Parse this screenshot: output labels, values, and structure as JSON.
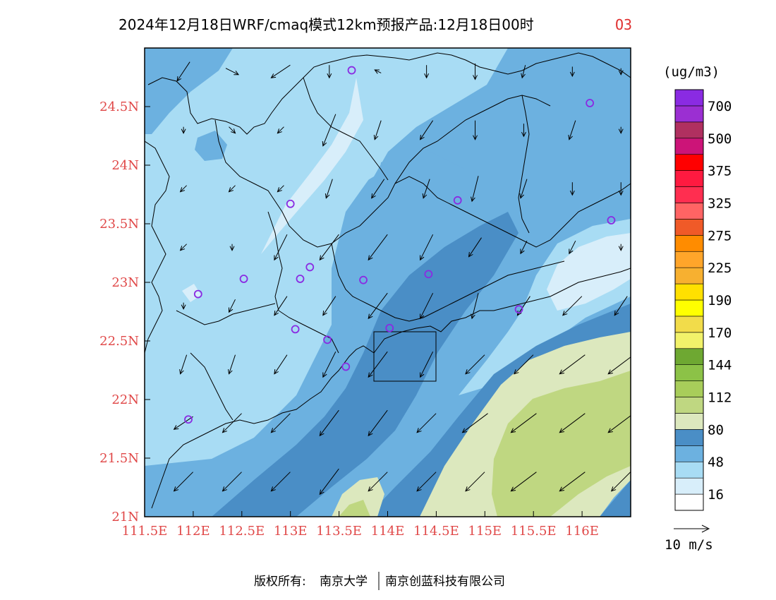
{
  "title": {
    "main": "2024年12月18日WRF/cmaq模式12km预报产品:12月18日00时",
    "species": "O3"
  },
  "map": {
    "lon_range": [
      111.5,
      116.5
    ],
    "lat_range": [
      21.0,
      25.0
    ],
    "x_ticks": [
      {
        "value": 111.5,
        "label": "111.5E"
      },
      {
        "value": 112.0,
        "label": "112E"
      },
      {
        "value": 112.5,
        "label": "112.5E"
      },
      {
        "value": 113.0,
        "label": "113E"
      },
      {
        "value": 113.5,
        "label": "113.5E"
      },
      {
        "value": 114.0,
        "label": "114E"
      },
      {
        "value": 114.5,
        "label": "114.5E"
      },
      {
        "value": 115.0,
        "label": "115E"
      },
      {
        "value": 115.5,
        "label": "115.5E"
      },
      {
        "value": 116.0,
        "label": "116E"
      }
    ],
    "y_ticks": [
      {
        "value": 21.0,
        "label": "21N"
      },
      {
        "value": 21.5,
        "label": "21.5N"
      },
      {
        "value": 22.0,
        "label": "22N"
      },
      {
        "value": 22.5,
        "label": "22.5N"
      },
      {
        "value": 23.0,
        "label": "23N"
      },
      {
        "value": 23.5,
        "label": "23.5N"
      },
      {
        "value": 24.0,
        "label": "24N"
      },
      {
        "value": 24.5,
        "label": "24.5N"
      }
    ],
    "colors": {
      "lev16": "#d8eefa",
      "lev48": "#a8dcf4",
      "lev64": "#6cb1e0",
      "lev80": "#4a8ec6",
      "lev96": "#dce8be",
      "lev112": "#bfd781",
      "border": "#000000",
      "station": "#8a2be2"
    },
    "stations": [
      {
        "lon": 113.63,
        "lat": 24.81
      },
      {
        "lon": 116.08,
        "lat": 24.53
      },
      {
        "lon": 113.0,
        "lat": 23.67
      },
      {
        "lon": 114.72,
        "lat": 23.7
      },
      {
        "lon": 116.3,
        "lat": 23.53
      },
      {
        "lon": 112.52,
        "lat": 23.03
      },
      {
        "lon": 113.2,
        "lat": 23.13
      },
      {
        "lon": 113.1,
        "lat": 23.03
      },
      {
        "lon": 113.75,
        "lat": 23.02
      },
      {
        "lon": 114.42,
        "lat": 23.07
      },
      {
        "lon": 112.05,
        "lat": 22.9
      },
      {
        "lon": 115.35,
        "lat": 22.77
      },
      {
        "lon": 113.05,
        "lat": 22.6
      },
      {
        "lon": 113.38,
        "lat": 22.51
      },
      {
        "lon": 114.02,
        "lat": 22.61
      },
      {
        "lon": 113.57,
        "lat": 22.28
      },
      {
        "lon": 111.95,
        "lat": 21.83
      }
    ],
    "wind": [
      {
        "lon": 111.9,
        "lat": 24.8,
        "u": -2,
        "v": -3
      },
      {
        "lon": 112.4,
        "lat": 24.8,
        "u": 2,
        "v": -1
      },
      {
        "lon": 112.9,
        "lat": 24.8,
        "u": -3,
        "v": -2
      },
      {
        "lon": 113.4,
        "lat": 24.8,
        "u": 0,
        "v": -2
      },
      {
        "lon": 113.9,
        "lat": 24.8,
        "u": -1,
        "v": 0.5
      },
      {
        "lon": 114.4,
        "lat": 24.8,
        "u": 0,
        "v": -2
      },
      {
        "lon": 114.9,
        "lat": 24.8,
        "u": 0,
        "v": -2.5
      },
      {
        "lon": 115.4,
        "lat": 24.8,
        "u": -0.5,
        "v": -2
      },
      {
        "lon": 115.9,
        "lat": 24.8,
        "u": 0,
        "v": -1.5
      },
      {
        "lon": 116.4,
        "lat": 24.8,
        "u": 0,
        "v": -1
      },
      {
        "lon": 111.9,
        "lat": 24.3,
        "u": 0,
        "v": -1
      },
      {
        "lon": 112.4,
        "lat": 24.3,
        "u": 1,
        "v": -1
      },
      {
        "lon": 112.9,
        "lat": 24.3,
        "u": -1,
        "v": -1
      },
      {
        "lon": 113.4,
        "lat": 24.3,
        "u": -2,
        "v": -5
      },
      {
        "lon": 113.9,
        "lat": 24.3,
        "u": -1,
        "v": -3
      },
      {
        "lon": 114.4,
        "lat": 24.3,
        "u": -2,
        "v": -3
      },
      {
        "lon": 114.9,
        "lat": 24.3,
        "u": 0,
        "v": -3
      },
      {
        "lon": 115.4,
        "lat": 24.3,
        "u": 0,
        "v": -2
      },
      {
        "lon": 115.9,
        "lat": 24.3,
        "u": -1,
        "v": -3
      },
      {
        "lon": 116.4,
        "lat": 24.3,
        "u": 0,
        "v": -1
      },
      {
        "lon": 111.9,
        "lat": 23.8,
        "u": -1,
        "v": -1
      },
      {
        "lon": 112.4,
        "lat": 23.8,
        "u": -1,
        "v": -1
      },
      {
        "lon": 112.9,
        "lat": 23.8,
        "u": -1,
        "v": -1
      },
      {
        "lon": 113.4,
        "lat": 23.8,
        "u": -1,
        "v": -3
      },
      {
        "lon": 113.9,
        "lat": 23.8,
        "u": -2,
        "v": -3
      },
      {
        "lon": 114.4,
        "lat": 23.8,
        "u": -1,
        "v": -3
      },
      {
        "lon": 114.9,
        "lat": 23.8,
        "u": -1,
        "v": -4
      },
      {
        "lon": 115.4,
        "lat": 23.8,
        "u": -1,
        "v": -3
      },
      {
        "lon": 115.9,
        "lat": 23.8,
        "u": 0,
        "v": -2
      },
      {
        "lon": 116.4,
        "lat": 23.8,
        "u": 0,
        "v": -2
      },
      {
        "lon": 111.9,
        "lat": 23.3,
        "u": -1,
        "v": -1
      },
      {
        "lon": 112.4,
        "lat": 23.3,
        "u": 0,
        "v": -1
      },
      {
        "lon": 112.9,
        "lat": 23.3,
        "u": -2,
        "v": -4
      },
      {
        "lon": 113.4,
        "lat": 23.3,
        "u": -3,
        "v": -4
      },
      {
        "lon": 113.9,
        "lat": 23.3,
        "u": -3,
        "v": -4
      },
      {
        "lon": 114.4,
        "lat": 23.3,
        "u": -2,
        "v": -4
      },
      {
        "lon": 114.9,
        "lat": 23.3,
        "u": -2,
        "v": -3
      },
      {
        "lon": 115.4,
        "lat": 23.3,
        "u": -1,
        "v": -2
      },
      {
        "lon": 115.9,
        "lat": 23.3,
        "u": -1,
        "v": -2
      },
      {
        "lon": 116.4,
        "lat": 23.3,
        "u": 0,
        "v": -1
      },
      {
        "lon": 111.9,
        "lat": 22.8,
        "u": 0,
        "v": -1
      },
      {
        "lon": 112.4,
        "lat": 22.8,
        "u": -1,
        "v": -2
      },
      {
        "lon": 112.9,
        "lat": 22.8,
        "u": -2,
        "v": -3
      },
      {
        "lon": 113.4,
        "lat": 22.8,
        "u": -2,
        "v": -3
      },
      {
        "lon": 113.9,
        "lat": 22.8,
        "u": -3,
        "v": -4
      },
      {
        "lon": 114.4,
        "lat": 22.8,
        "u": -2,
        "v": -4
      },
      {
        "lon": 114.9,
        "lat": 22.8,
        "u": -1,
        "v": -4
      },
      {
        "lon": 115.4,
        "lat": 22.8,
        "u": -2,
        "v": -3
      },
      {
        "lon": 115.9,
        "lat": 22.8,
        "u": -3,
        "v": -3
      },
      {
        "lon": 116.4,
        "lat": 22.8,
        "u": -2,
        "v": -3
      },
      {
        "lon": 111.9,
        "lat": 22.3,
        "u": -1,
        "v": -3
      },
      {
        "lon": 112.4,
        "lat": 22.3,
        "u": -1,
        "v": -3
      },
      {
        "lon": 112.9,
        "lat": 22.3,
        "u": -2,
        "v": -3
      },
      {
        "lon": 113.4,
        "lat": 22.3,
        "u": -2,
        "v": -4
      },
      {
        "lon": 113.9,
        "lat": 22.3,
        "u": -3,
        "v": -4
      },
      {
        "lon": 114.4,
        "lat": 22.3,
        "u": -2,
        "v": -4
      },
      {
        "lon": 114.9,
        "lat": 22.3,
        "u": -3,
        "v": -3
      },
      {
        "lon": 115.4,
        "lat": 22.3,
        "u": -3,
        "v": -3
      },
      {
        "lon": 115.9,
        "lat": 22.3,
        "u": -4,
        "v": -3
      },
      {
        "lon": 116.4,
        "lat": 22.3,
        "u": -4,
        "v": -3
      },
      {
        "lon": 111.9,
        "lat": 21.8,
        "u": -3,
        "v": -2
      },
      {
        "lon": 112.4,
        "lat": 21.8,
        "u": -3,
        "v": -3
      },
      {
        "lon": 112.9,
        "lat": 21.8,
        "u": -3,
        "v": -3
      },
      {
        "lon": 113.4,
        "lat": 21.8,
        "u": -3,
        "v": -4
      },
      {
        "lon": 113.9,
        "lat": 21.8,
        "u": -3,
        "v": -4
      },
      {
        "lon": 114.4,
        "lat": 21.8,
        "u": -3,
        "v": -3
      },
      {
        "lon": 114.9,
        "lat": 21.8,
        "u": -4,
        "v": -3
      },
      {
        "lon": 115.4,
        "lat": 21.8,
        "u": -4,
        "v": -3
      },
      {
        "lon": 115.9,
        "lat": 21.8,
        "u": -4,
        "v": -3
      },
      {
        "lon": 116.4,
        "lat": 21.8,
        "u": -4,
        "v": -3
      },
      {
        "lon": 111.9,
        "lat": 21.3,
        "u": -3,
        "v": -3
      },
      {
        "lon": 112.4,
        "lat": 21.3,
        "u": -3,
        "v": -3
      },
      {
        "lon": 112.9,
        "lat": 21.3,
        "u": -3,
        "v": -3
      },
      {
        "lon": 113.4,
        "lat": 21.3,
        "u": -3,
        "v": -4
      },
      {
        "lon": 113.9,
        "lat": 21.3,
        "u": -3,
        "v": -3
      },
      {
        "lon": 114.4,
        "lat": 21.3,
        "u": -3,
        "v": -3
      },
      {
        "lon": 114.9,
        "lat": 21.3,
        "u": -3,
        "v": -3
      },
      {
        "lon": 115.4,
        "lat": 21.3,
        "u": -4,
        "v": -3
      },
      {
        "lon": 115.9,
        "lat": 21.3,
        "u": -4,
        "v": -3
      },
      {
        "lon": 116.4,
        "lat": 21.3,
        "u": -3,
        "v": -3
      }
    ]
  },
  "legend": {
    "unit": "(ug/m3)",
    "bins": [
      {
        "color": "#ffffff"
      },
      {
        "color": "#d8eefa"
      },
      {
        "color": "#a8dcf4"
      },
      {
        "color": "#6cb1e0"
      },
      {
        "color": "#4a8ec6"
      },
      {
        "color": "#dce8be"
      },
      {
        "color": "#bfd781"
      },
      {
        "color": "#a8cd5a"
      },
      {
        "color": "#8cc247"
      },
      {
        "color": "#6ea832"
      },
      {
        "color": "#f2f26a"
      },
      {
        "color": "#f2dc4a"
      },
      {
        "color": "#ffff00"
      },
      {
        "color": "#ffe000"
      },
      {
        "color": "#f7b030"
      },
      {
        "color": "#ffa52a"
      },
      {
        "color": "#ff8c00"
      },
      {
        "color": "#f05a28"
      },
      {
        "color": "#ff6464"
      },
      {
        "color": "#ff2e50"
      },
      {
        "color": "#ff1a40"
      },
      {
        "color": "#ff0000"
      },
      {
        "color": "#cc1478"
      },
      {
        "color": "#b03060"
      },
      {
        "color": "#9b2fd2"
      },
      {
        "color": "#8a2be2"
      }
    ],
    "labels": [
      {
        "boundary": 1,
        "text": "16"
      },
      {
        "boundary": 3,
        "text": "48"
      },
      {
        "boundary": 5,
        "text": "80"
      },
      {
        "boundary": 7,
        "text": "112"
      },
      {
        "boundary": 9,
        "text": "144"
      },
      {
        "boundary": 11,
        "text": "170"
      },
      {
        "boundary": 13,
        "text": "190"
      },
      {
        "boundary": 15,
        "text": "225"
      },
      {
        "boundary": 17,
        "text": "275"
      },
      {
        "boundary": 19,
        "text": "325"
      },
      {
        "boundary": 21,
        "text": "375"
      },
      {
        "boundary": 23,
        "text": "500"
      },
      {
        "boundary": 25,
        "text": "700"
      }
    ],
    "wind_ref": "10 m/s"
  },
  "footer": {
    "copyright_label": "版权所有:",
    "org1": "南京大学",
    "org2": "南京创蓝科技有限公司"
  }
}
